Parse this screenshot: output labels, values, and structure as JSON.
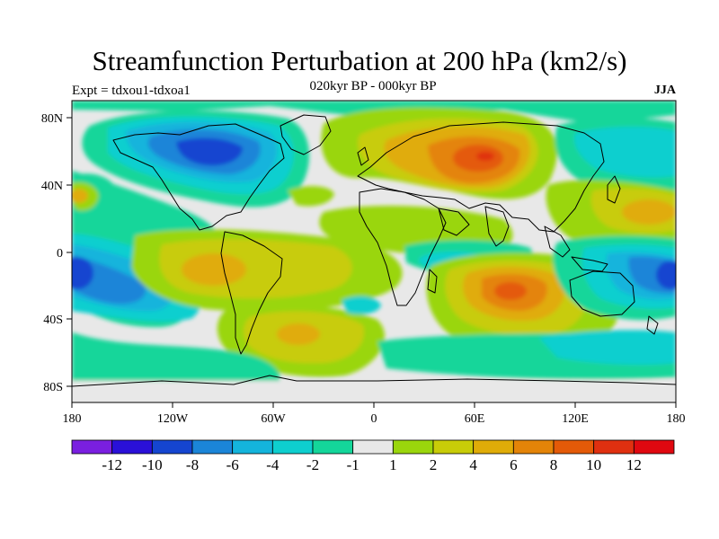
{
  "title": "Streamfunction Perturbation at 200 hPa (km2/s)",
  "subtitle": "020kyr BP - 000kyr BP",
  "expt_label": "Expt = tdxou1-tdxoa1",
  "season": "JJA",
  "lat_labels": [
    "80N",
    "40N",
    "0",
    "40S",
    "80S"
  ],
  "lon_labels": [
    "180",
    "120W",
    "60W",
    "0",
    "60E",
    "120E",
    "180"
  ],
  "colorbar": {
    "colors": [
      "#7a1fe0",
      "#2a10d8",
      "#1545d0",
      "#1b85d8",
      "#14b4dc",
      "#0ecfcf",
      "#14d69a",
      "#e8e8e8",
      "#9ad60c",
      "#c8cc08",
      "#e0ac08",
      "#e48408",
      "#e45a08",
      "#e03010",
      "#e00810"
    ],
    "labels": [
      "-12",
      "-10",
      "-8",
      "-6",
      "-4",
      "-2",
      "-1",
      "1",
      "2",
      "4",
      "6",
      "8",
      "10",
      "12"
    ]
  }
}
